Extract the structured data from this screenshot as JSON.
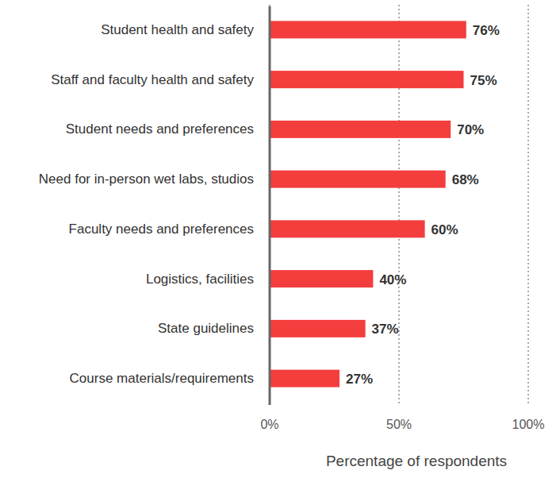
{
  "chart_data": {
    "type": "bar",
    "orientation": "horizontal",
    "categories": [
      "Student health and safety",
      "Staff and faculty health and safety",
      "Student needs and preferences",
      "Need for in-person wet labs, studios",
      "Faculty needs and preferences",
      "Logistics, facilities",
      "State guidelines",
      "Course materials/requirements"
    ],
    "values": [
      76,
      75,
      70,
      68,
      60,
      40,
      37,
      27
    ],
    "value_labels": [
      "76%",
      "75%",
      "70%",
      "68%",
      "60%",
      "40%",
      "37%",
      "27%"
    ],
    "color": "#f43d3d",
    "xlim": [
      0,
      100
    ],
    "xticks": [
      {
        "value": 0,
        "label": "0%"
      },
      {
        "value": 50,
        "label": "50%"
      },
      {
        "value": 100,
        "label": "100%"
      }
    ],
    "xlabel": "Percentage of respondents",
    "grid": true,
    "data_labels": true
  }
}
